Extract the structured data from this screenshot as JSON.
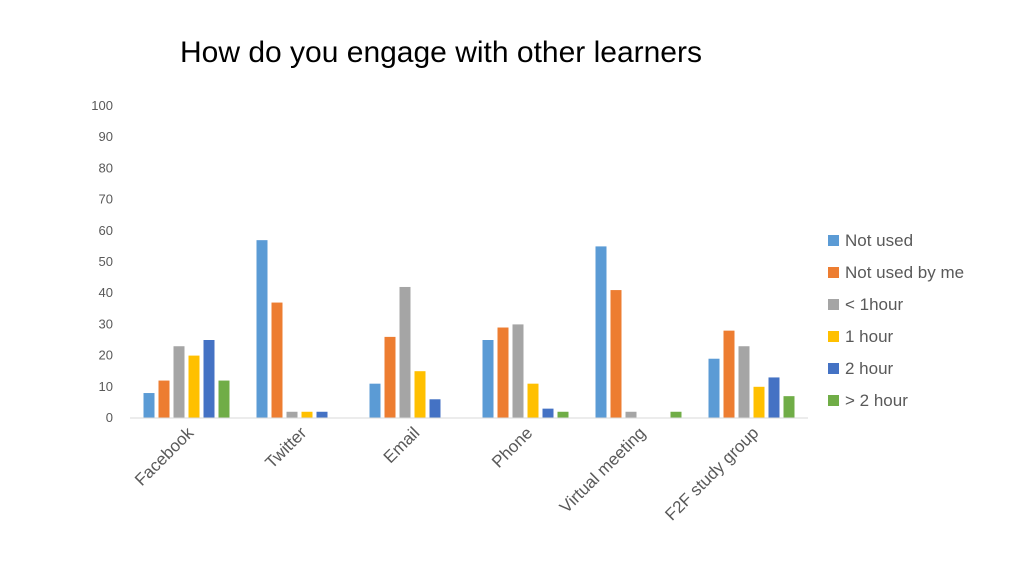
{
  "slide": {
    "title": "How do you engage with other learners"
  },
  "chart_data": {
    "type": "bar",
    "title": "How do you engage with other learners",
    "xlabel": "",
    "ylabel": "",
    "ylim": [
      0,
      100
    ],
    "yticks": [
      0,
      10,
      20,
      30,
      40,
      50,
      60,
      70,
      80,
      90,
      100
    ],
    "grid": false,
    "legend_position": "right",
    "categories": [
      "Facebook",
      "Twitter",
      "Email",
      "Phone",
      "Virtual meeting",
      "F2F study group"
    ],
    "series": [
      {
        "name": "Not used",
        "color": "#5B9BD5",
        "values": [
          8,
          57,
          11,
          25,
          55,
          19
        ]
      },
      {
        "name": "Not used by me",
        "color": "#ED7D31",
        "values": [
          12,
          37,
          26,
          29,
          41,
          28
        ]
      },
      {
        "name": "< 1hour",
        "color": "#A5A5A5",
        "values": [
          23,
          2,
          42,
          30,
          2,
          23
        ]
      },
      {
        "name": "1 hour",
        "color": "#FFC000",
        "values": [
          20,
          2,
          15,
          11,
          0,
          10
        ]
      },
      {
        "name": "2 hour",
        "color": "#4472C4",
        "values": [
          25,
          2,
          6,
          3,
          0,
          13
        ]
      },
      {
        "name": "> 2 hour",
        "color": "#70AD47",
        "values": [
          12,
          0,
          0,
          2,
          2,
          7
        ]
      }
    ]
  }
}
